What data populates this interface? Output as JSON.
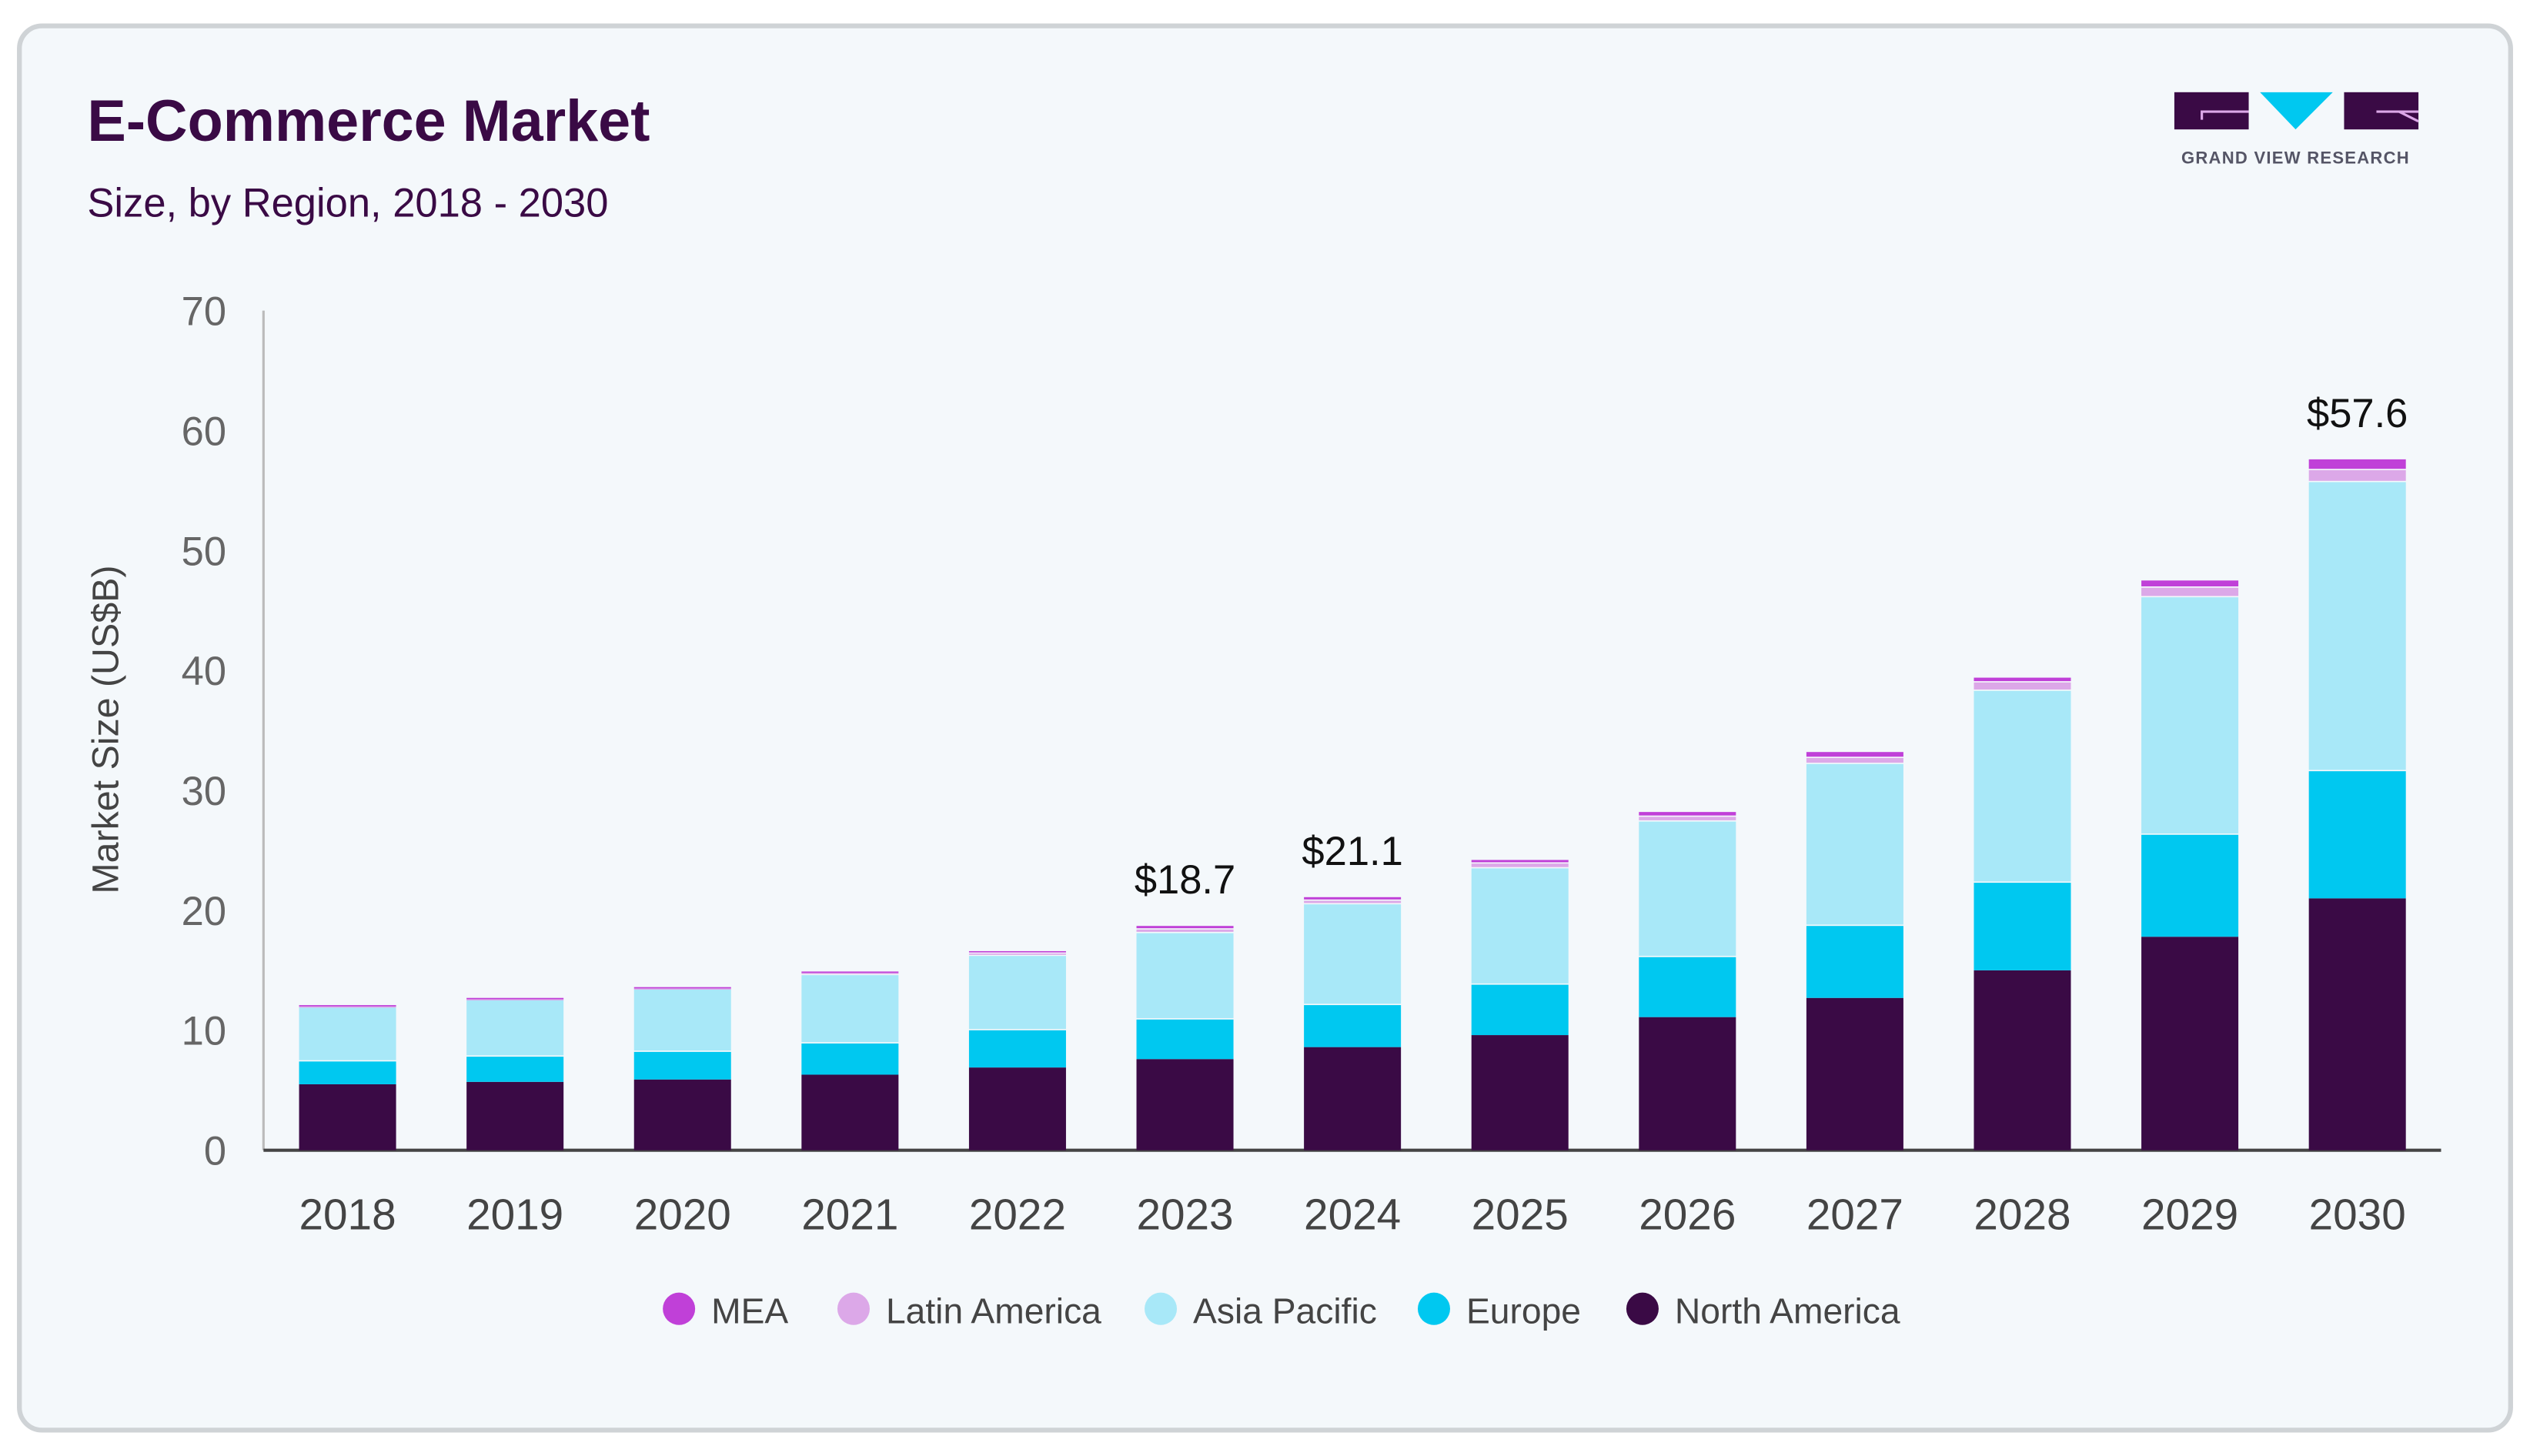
{
  "chart_data": {
    "type": "bar",
    "stacked": true,
    "title": "E-Commerce Market",
    "subtitle": "Size, by Region, 2018 - 2030",
    "xlabel": "",
    "ylabel": "Market Size (US$B)",
    "ylim": [
      0,
      70
    ],
    "yticks": [
      "0",
      "10",
      "20",
      "30",
      "40",
      "50",
      "60",
      "70"
    ],
    "grid": false,
    "legend_position": "bottom",
    "categories": [
      "2018",
      "2019",
      "2020",
      "2021",
      "2022",
      "2023",
      "2024",
      "2025",
      "2026",
      "2027",
      "2028",
      "2029",
      "2030"
    ],
    "series": [
      {
        "name": "North America",
        "color": "#3a0a45",
        "values": [
          5.5,
          5.7,
          5.9,
          6.3,
          6.9,
          7.6,
          8.6,
          9.6,
          11.1,
          12.7,
          15.0,
          17.8,
          21.0
        ]
      },
      {
        "name": "Europe",
        "color": "#00c8f0",
        "values": [
          1.9,
          2.1,
          2.3,
          2.6,
          3.1,
          3.3,
          3.5,
          4.2,
          5.0,
          6.0,
          7.3,
          8.5,
          10.6
        ]
      },
      {
        "name": "Asia Pacific",
        "color": "#a8e8f8",
        "values": [
          4.5,
          4.7,
          5.2,
          5.7,
          6.2,
          7.2,
          8.4,
          9.7,
          11.3,
          13.5,
          16.0,
          19.8,
          24.1
        ]
      },
      {
        "name": "Latin America",
        "color": "#dca8e8",
        "values": [
          0.1,
          0.1,
          0.1,
          0.2,
          0.2,
          0.3,
          0.3,
          0.4,
          0.4,
          0.5,
          0.7,
          0.8,
          1.0
        ]
      },
      {
        "name": "MEA",
        "color": "#c040d8",
        "values": [
          0.1,
          0.1,
          0.1,
          0.1,
          0.2,
          0.3,
          0.3,
          0.3,
          0.4,
          0.5,
          0.4,
          0.6,
          0.9
        ]
      }
    ],
    "legend_order": [
      "MEA",
      "Latin America",
      "Asia Pacific",
      "Europe",
      "North America"
    ],
    "data_labels": [
      {
        "category": "2023",
        "text": "$18.7"
      },
      {
        "category": "2024",
        "text": "$21.1"
      },
      {
        "category": "2030",
        "text": "$57.6"
      }
    ]
  },
  "logo": {
    "text": "GRAND VIEW RESEARCH",
    "colors": [
      "#3a0a45",
      "#00c8f0"
    ]
  },
  "colors": {
    "title": "#3a0a45",
    "background": "#f4f8fb",
    "axis_text": "#555555"
  }
}
